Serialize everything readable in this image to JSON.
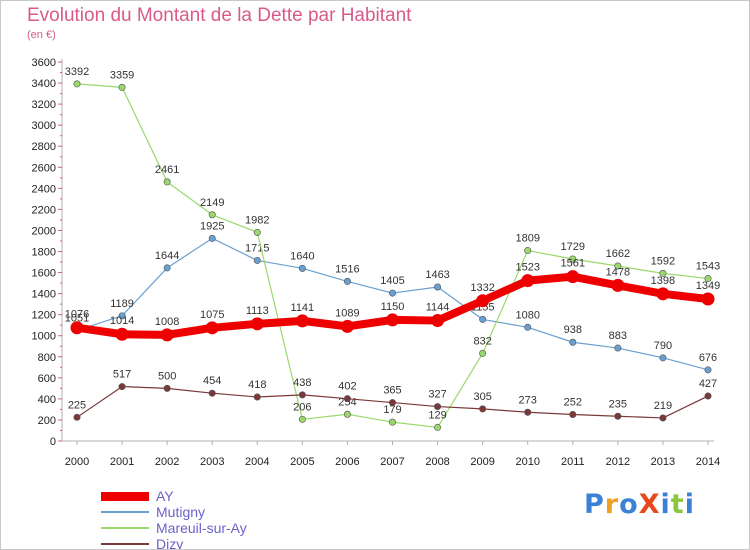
{
  "title": "Evolution du Montant de la Dette par Habitant",
  "subtitle": "(en €)",
  "logo": {
    "text": "ProXiti",
    "colors": [
      "#3b82d6",
      "#f0a020",
      "#3b82d6",
      "#e8481e",
      "#3b82d6",
      "#8cc63e",
      "#3b82d6"
    ]
  },
  "chart_data": {
    "type": "line",
    "title": "Evolution du Montant de la Dette par Habitant",
    "ylabel": "(en €)",
    "xlabel": "",
    "x": [
      "2000",
      "2001",
      "2002",
      "2003",
      "2004",
      "2005",
      "2006",
      "2007",
      "2008",
      "2009",
      "2010",
      "2011",
      "2012",
      "2013",
      "2014"
    ],
    "ylim": [
      0,
      3600
    ],
    "yticks": [
      "0",
      "200",
      "400",
      "600",
      "800",
      "1000",
      "1200",
      "1400",
      "1600",
      "1800",
      "2000",
      "2200",
      "2400",
      "2600",
      "2800",
      "3000",
      "3200",
      "3400",
      "3600"
    ],
    "grid": false,
    "legend_position": "bottom-left",
    "series": [
      {
        "name": "AY",
        "color": "#ee0000",
        "values": [
          1076,
          1014,
          1008,
          1075,
          1113,
          1141,
          1089,
          1150,
          1144,
          1332,
          1523,
          1561,
          1478,
          1398,
          1349
        ]
      },
      {
        "name": "Mutigny",
        "color": "#6aa0d0",
        "values": [
          1051,
          1189,
          1644,
          1925,
          1715,
          1640,
          1516,
          1405,
          1463,
          1155,
          1080,
          938,
          883,
          790,
          676
        ]
      },
      {
        "name": "Mareuil-sur-Ay",
        "color": "#9ad86c",
        "values": [
          3392,
          3359,
          2461,
          2149,
          1982,
          206,
          254,
          179,
          129,
          832,
          1809,
          1729,
          1662,
          1592,
          1543
        ]
      },
      {
        "name": "Dizy",
        "color": "#7a3838",
        "values": [
          225,
          517,
          500,
          454,
          418,
          438,
          402,
          365,
          327,
          305,
          273,
          252,
          235,
          219,
          427
        ]
      }
    ]
  }
}
